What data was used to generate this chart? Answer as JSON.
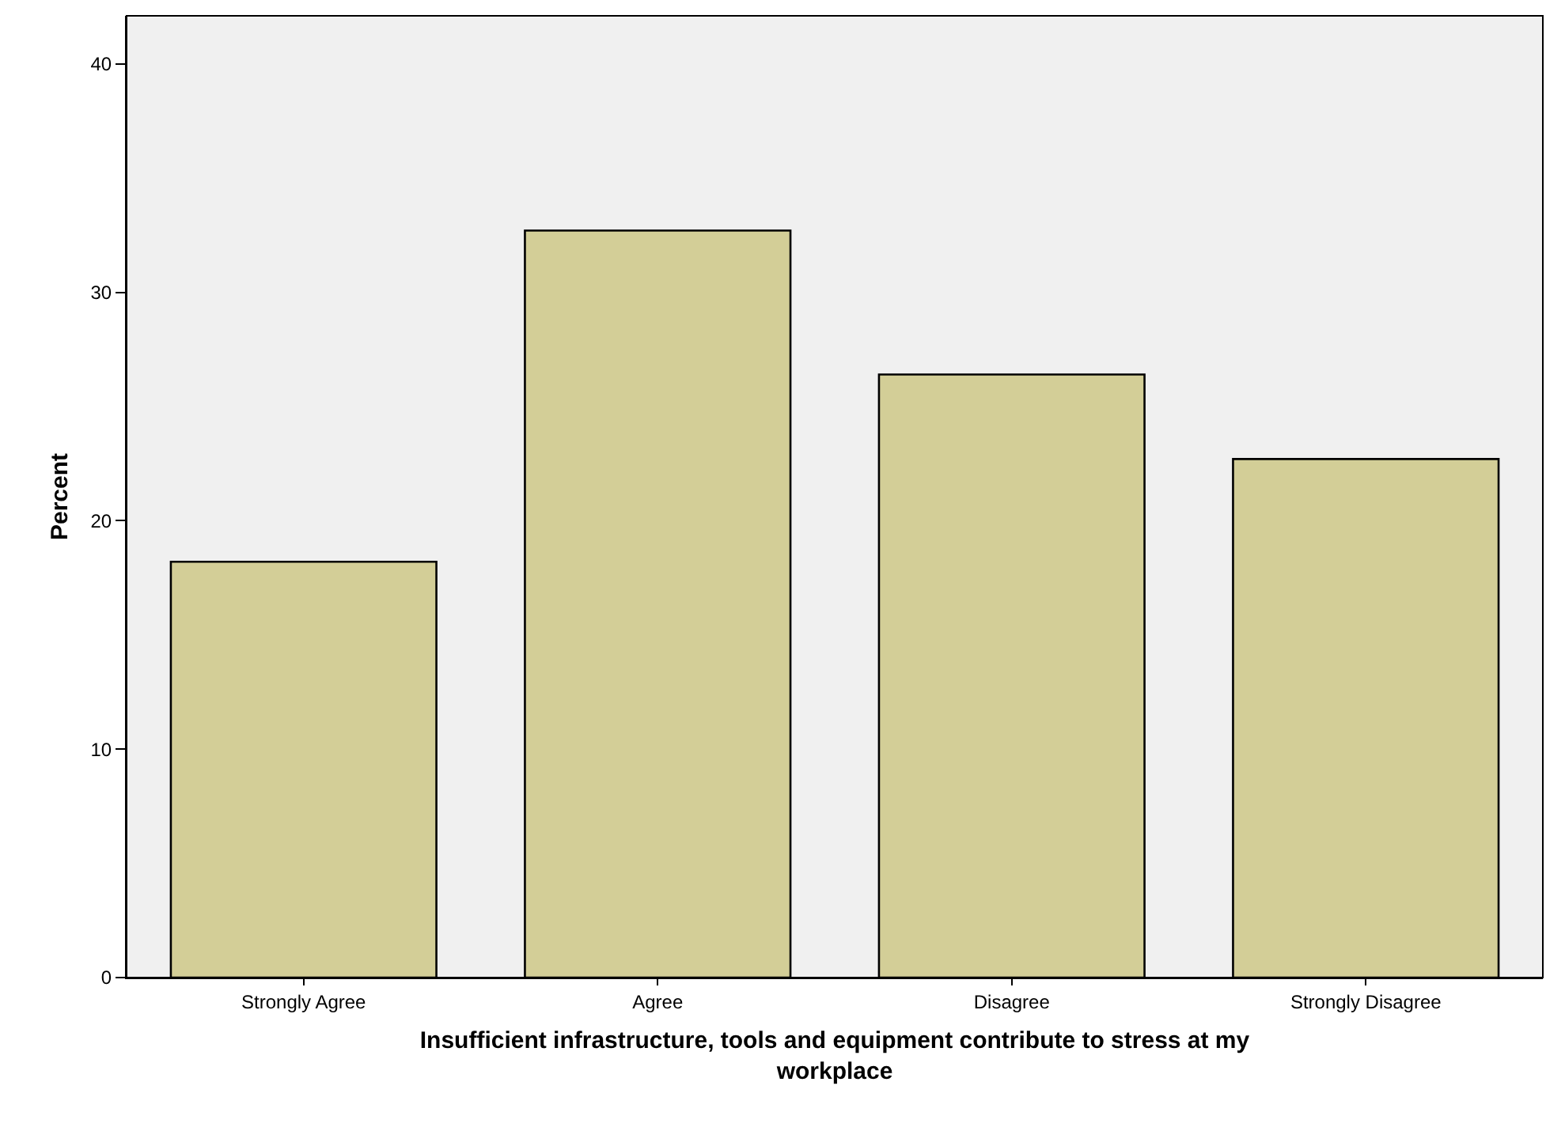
{
  "chart_data": {
    "type": "bar",
    "xlabel": "Insufficient infrastructure, tools and equipment contribute to stress at my workplace",
    "ylabel": "Percent",
    "categories": [
      "Strongly Agree",
      "Agree",
      "Disagree",
      "Strongly Disagree"
    ],
    "values": [
      18.2,
      32.7,
      26.4,
      22.7
    ],
    "color": "#d3ce97",
    "ylim": [
      0,
      42.1
    ],
    "yticks": [
      0,
      10,
      20,
      30,
      40
    ],
    "grid": false,
    "legend": false
  }
}
